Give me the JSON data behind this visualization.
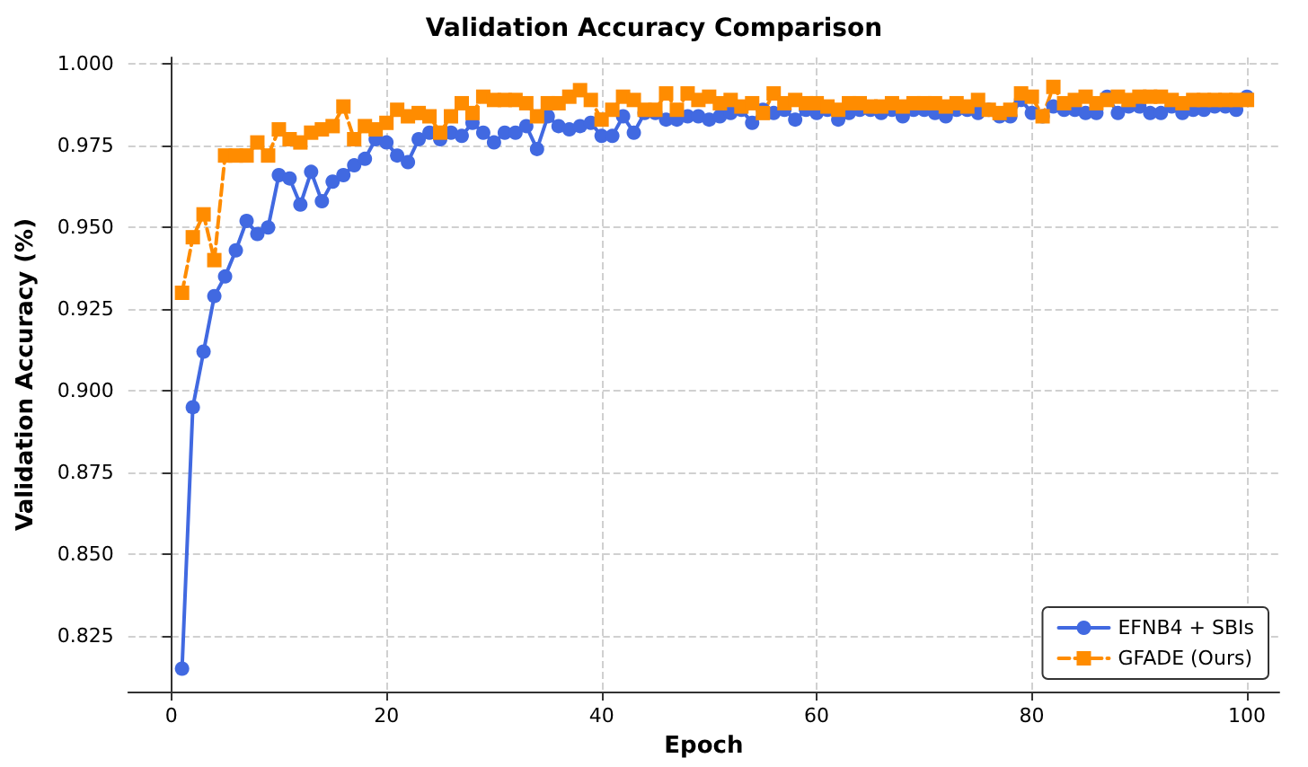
{
  "chart_data": {
    "type": "line",
    "title": "Validation Accuracy Comparison",
    "xlabel": "Epoch",
    "ylabel": "Validation Accuracy (%)",
    "x": [
      1,
      2,
      3,
      4,
      5,
      6,
      7,
      8,
      9,
      10,
      11,
      12,
      13,
      14,
      15,
      16,
      17,
      18,
      19,
      20,
      21,
      22,
      23,
      24,
      25,
      26,
      27,
      28,
      29,
      30,
      31,
      32,
      33,
      34,
      35,
      36,
      37,
      38,
      39,
      40,
      41,
      42,
      43,
      44,
      45,
      46,
      47,
      48,
      49,
      50,
      51,
      52,
      53,
      54,
      55,
      56,
      57,
      58,
      59,
      60,
      61,
      62,
      63,
      64,
      65,
      66,
      67,
      68,
      69,
      70,
      71,
      72,
      73,
      74,
      75,
      76,
      77,
      78,
      79,
      80,
      81,
      82,
      83,
      84,
      85,
      86,
      87,
      88,
      89,
      90,
      91,
      92,
      93,
      94,
      95,
      96,
      97,
      98,
      99,
      100
    ],
    "series": [
      {
        "name": "EFNB4 + SBIs",
        "color": "#4169e1",
        "marker": "circle",
        "line_style": "solid",
        "values": [
          0.815,
          0.895,
          0.912,
          0.929,
          0.935,
          0.943,
          0.952,
          0.948,
          0.95,
          0.966,
          0.965,
          0.957,
          0.967,
          0.958,
          0.964,
          0.966,
          0.969,
          0.971,
          0.977,
          0.976,
          0.972,
          0.97,
          0.977,
          0.979,
          0.977,
          0.979,
          0.978,
          0.982,
          0.979,
          0.976,
          0.979,
          0.979,
          0.981,
          0.974,
          0.984,
          0.981,
          0.98,
          0.981,
          0.982,
          0.978,
          0.978,
          0.984,
          0.979,
          0.985,
          0.985,
          0.983,
          0.983,
          0.984,
          0.984,
          0.983,
          0.984,
          0.985,
          0.986,
          0.982,
          0.986,
          0.985,
          0.986,
          0.983,
          0.986,
          0.985,
          0.986,
          0.983,
          0.985,
          0.986,
          0.986,
          0.985,
          0.986,
          0.984,
          0.986,
          0.986,
          0.985,
          0.984,
          0.986,
          0.986,
          0.985,
          0.986,
          0.984,
          0.984,
          0.989,
          0.985,
          0.984,
          0.987,
          0.986,
          0.986,
          0.985,
          0.985,
          0.99,
          0.985,
          0.987,
          0.987,
          0.985,
          0.985,
          0.987,
          0.985,
          0.986,
          0.986,
          0.987,
          0.987,
          0.986,
          0.99
        ]
      },
      {
        "name": "GFADE (Ours)",
        "color": "#ff8c00",
        "marker": "square",
        "line_style": "dashed",
        "values": [
          0.93,
          0.947,
          0.954,
          0.94,
          0.972,
          0.972,
          0.972,
          0.976,
          0.972,
          0.98,
          0.977,
          0.976,
          0.979,
          0.98,
          0.981,
          0.987,
          0.977,
          0.981,
          0.98,
          0.982,
          0.986,
          0.984,
          0.985,
          0.984,
          0.979,
          0.984,
          0.988,
          0.985,
          0.99,
          0.989,
          0.989,
          0.989,
          0.988,
          0.984,
          0.988,
          0.988,
          0.99,
          0.992,
          0.989,
          0.983,
          0.986,
          0.99,
          0.989,
          0.986,
          0.986,
          0.991,
          0.986,
          0.991,
          0.989,
          0.99,
          0.988,
          0.989,
          0.987,
          0.988,
          0.985,
          0.991,
          0.988,
          0.989,
          0.988,
          0.988,
          0.987,
          0.986,
          0.988,
          0.988,
          0.987,
          0.987,
          0.988,
          0.987,
          0.988,
          0.988,
          0.988,
          0.987,
          0.988,
          0.987,
          0.989,
          0.986,
          0.985,
          0.986,
          0.991,
          0.99,
          0.984,
          0.993,
          0.988,
          0.989,
          0.99,
          0.988,
          0.989,
          0.99,
          0.989,
          0.99,
          0.99,
          0.99,
          0.989,
          0.988,
          0.989,
          0.989,
          0.989,
          0.989,
          0.989,
          0.989
        ]
      }
    ],
    "xlim": [
      -4,
      103
    ],
    "xticks": [
      0,
      20,
      40,
      60,
      80,
      100
    ],
    "ylim": [
      0.808,
      1.002
    ],
    "yticks": [
      0.825,
      {
        "value": 0.85,
        "label": "0.850"
      },
      0.875,
      {
        "value": 0.9,
        "label": "0.900"
      },
      0.925,
      {
        "value": 0.95,
        "label": "0.950"
      },
      0.975,
      {
        "value": 1,
        "label": "1.000"
      }
    ],
    "grid": true,
    "legend": "bottom right"
  }
}
